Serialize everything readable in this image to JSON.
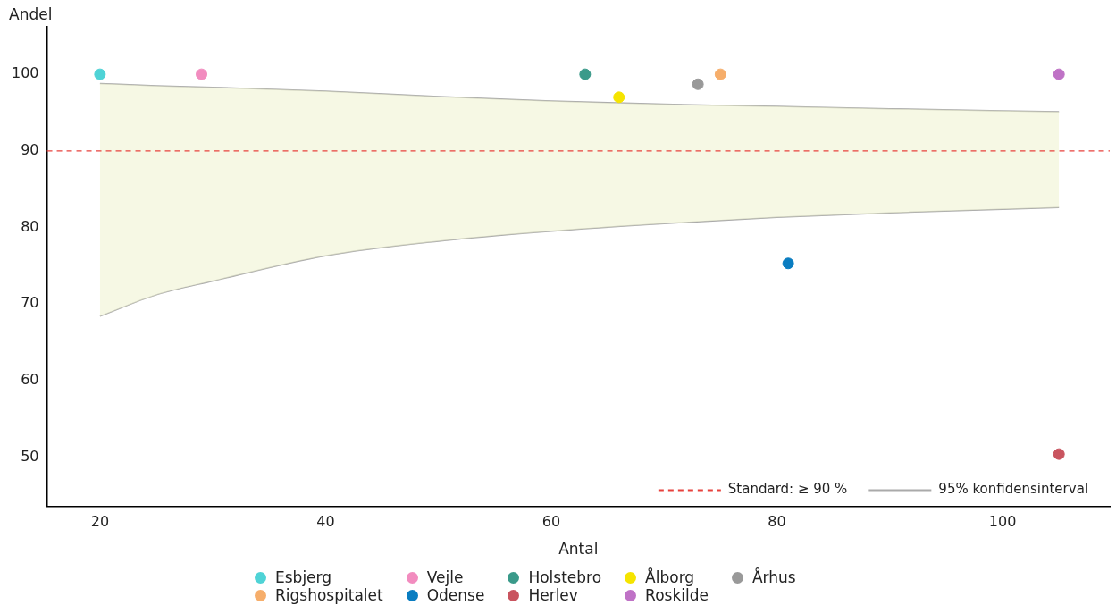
{
  "chart_data": {
    "type": "scatter",
    "xlabel": "Antal",
    "ylabel": "Andel",
    "xlim": [
      15.3,
      109.5
    ],
    "ylim": [
      43.6,
      106.2
    ],
    "xticks": [
      20,
      40,
      60,
      80,
      100
    ],
    "yticks": [
      50,
      60,
      70,
      80,
      90,
      100
    ],
    "grid": false,
    "legend": "bottom",
    "marker": "circle",
    "ref_lines": [
      {
        "axis": "y",
        "value": 90,
        "label": "Standard: ≥ 90 %",
        "color": "#e8413c",
        "line_style": "dashed"
      }
    ],
    "series": [
      {
        "name": "Esbjerg",
        "color": "#4fd3d6",
        "x": [
          20
        ],
        "values": [
          100
        ]
      },
      {
        "name": "Vejle",
        "color": "#f28cbf",
        "x": [
          29
        ],
        "values": [
          100
        ]
      },
      {
        "name": "Holstebro",
        "color": "#3a9a8a",
        "x": [
          63
        ],
        "values": [
          100
        ]
      },
      {
        "name": "Ålborg",
        "color": "#f5e400",
        "x": [
          66
        ],
        "values": [
          97
        ]
      },
      {
        "name": "Århus",
        "color": "#999999",
        "x": [
          73
        ],
        "values": [
          98.7
        ]
      },
      {
        "name": "Rigshospitalet",
        "color": "#f6ae6b",
        "x": [
          75
        ],
        "values": [
          100
        ]
      },
      {
        "name": "Odense",
        "color": "#0a7dc1",
        "x": [
          81
        ],
        "values": [
          75.3
        ]
      },
      {
        "name": "Herlev",
        "color": "#c9545f",
        "x": [
          105
        ],
        "values": [
          50.4
        ]
      },
      {
        "name": "Roskilde",
        "color": "#bf72c6",
        "x": [
          105
        ],
        "values": [
          100
        ]
      },
      {
        "name": "95% konfidensinterval",
        "type": "line",
        "color": "#aaaaaa",
        "marker": "none",
        "x": [
          20,
          25,
          30,
          40,
          50,
          60,
          70,
          80,
          90,
          105
        ],
        "values": [
          98.8,
          98.5,
          98.3,
          97.8,
          97.1,
          96.5,
          96.1,
          95.8,
          95.5,
          95.1
        ],
        "lower": [
          68.4,
          71.2,
          73,
          76.3,
          78.2,
          79.5,
          80.5,
          81.3,
          81.9,
          82.6
        ],
        "upper": [
          98.8,
          98.5,
          98.3,
          97.8,
          97.1,
          96.5,
          96.1,
          95.8,
          95.5,
          95.1
        ]
      },
      {
        "type": "line",
        "color": "#aaaaaa",
        "marker": "none",
        "x": [
          20,
          25,
          30,
          40,
          50,
          60,
          70,
          80,
          90,
          105
        ],
        "values": [
          68.4,
          71.2,
          73,
          76.3,
          78.2,
          79.5,
          80.5,
          81.3,
          81.9,
          82.6
        ]
      }
    ]
  }
}
